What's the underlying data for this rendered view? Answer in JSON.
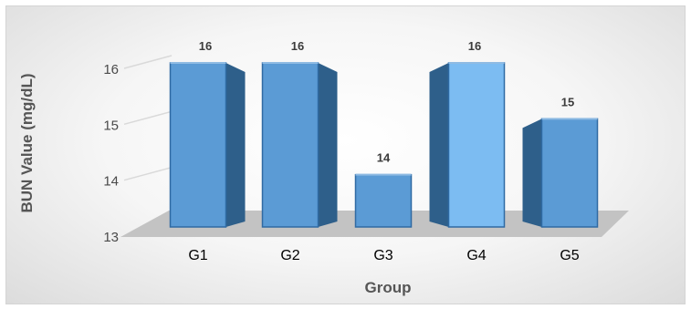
{
  "chart_data": {
    "type": "bar",
    "categories": [
      "G1",
      "G2",
      "G3",
      "G4",
      "G5"
    ],
    "values": [
      16,
      16,
      14,
      16,
      15
    ],
    "data_labels": [
      "16",
      "16",
      "14",
      "16",
      "15"
    ],
    "title": "",
    "xlabel": "Group",
    "ylabel": "BUN Value (mg/dL)",
    "ylim": [
      13,
      16
    ],
    "yticks": [
      "13",
      "14",
      "15",
      "16"
    ],
    "grid": true,
    "legend": "none",
    "style": "3d-clustered-column",
    "colors": {
      "bar_front": "#5b9bd5",
      "bar_side": "#2e5f8a",
      "bar_top": "#8fbbe3",
      "highlight_front": "#7cbcf2",
      "floor": "#c3c3c3",
      "grid": "#d9d9d9"
    }
  }
}
